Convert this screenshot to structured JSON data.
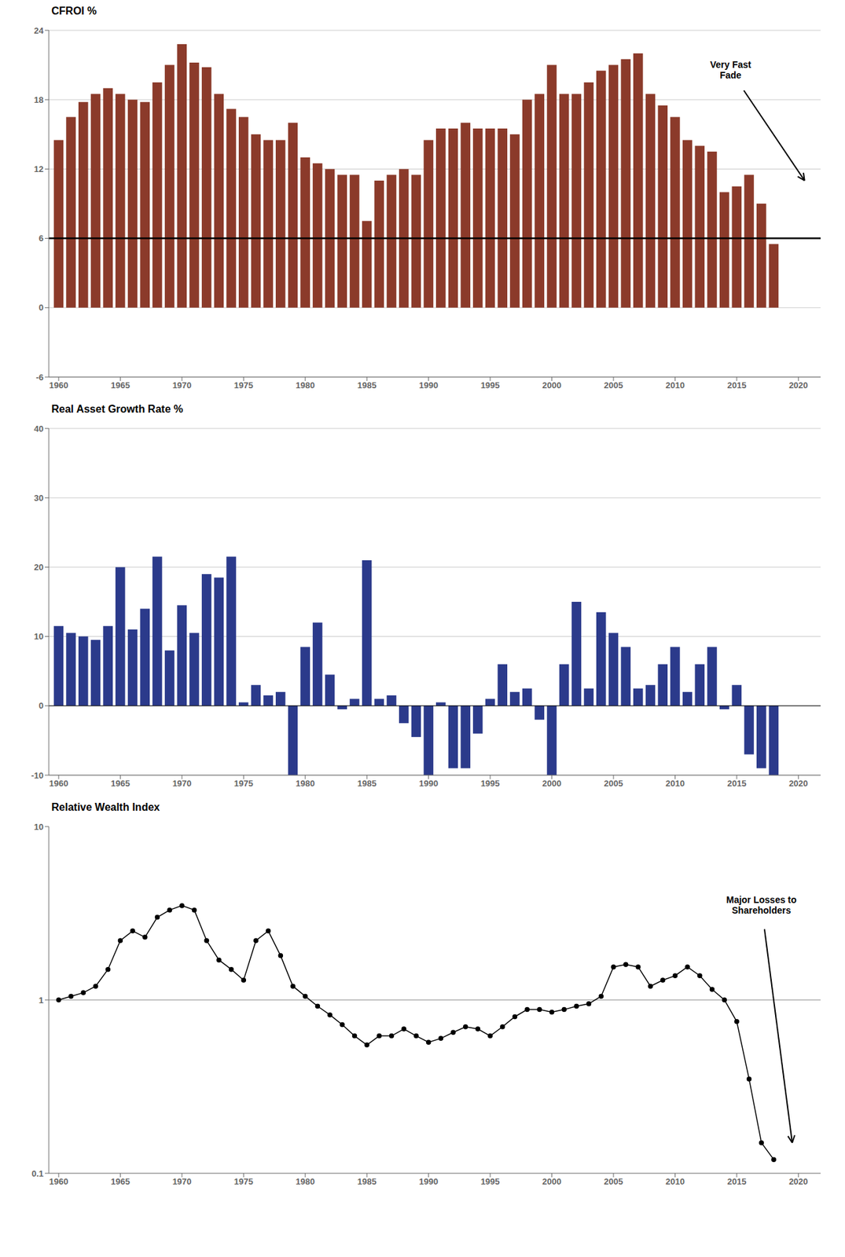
{
  "chart_data": [
    {
      "type": "bar",
      "title": "CFROI %",
      "x": [
        1960,
        1961,
        1962,
        1963,
        1964,
        1965,
        1966,
        1967,
        1968,
        1969,
        1970,
        1971,
        1972,
        1973,
        1974,
        1975,
        1976,
        1977,
        1978,
        1979,
        1980,
        1981,
        1982,
        1983,
        1984,
        1985,
        1986,
        1987,
        1988,
        1989,
        1990,
        1991,
        1992,
        1993,
        1994,
        1995,
        1996,
        1997,
        1998,
        1999,
        2000,
        2001,
        2002,
        2003,
        2004,
        2005,
        2006,
        2007,
        2008,
        2009,
        2010,
        2011,
        2012,
        2013,
        2014,
        2015,
        2016,
        2017,
        2018
      ],
      "values": [
        14.5,
        16.5,
        17.8,
        18.5,
        19.0,
        18.5,
        18.0,
        17.8,
        19.5,
        21.0,
        22.8,
        21.2,
        20.8,
        18.5,
        17.2,
        16.5,
        15.0,
        14.5,
        14.5,
        16.0,
        13.0,
        12.5,
        12.0,
        11.5,
        11.5,
        7.5,
        11.0,
        11.5,
        12.0,
        11.5,
        14.5,
        15.5,
        15.5,
        16.0,
        15.5,
        15.5,
        15.5,
        15.0,
        18.0,
        18.5,
        21.0,
        18.5,
        18.5,
        19.5,
        20.5,
        21.0,
        21.5,
        22.0,
        18.5,
        17.5,
        16.5,
        14.5,
        14.0,
        13.5,
        10.0,
        10.5,
        11.5,
        9.0,
        5.5
      ],
      "color": "#8B3A2A",
      "xlim": [
        1959.2,
        2021.8
      ],
      "xticks": [
        1960,
        1965,
        1970,
        1975,
        1980,
        1985,
        1990,
        1995,
        2000,
        2005,
        2010,
        2015,
        2020
      ],
      "ylim": [
        -6,
        24
      ],
      "yticks": [
        -6,
        0,
        6,
        12,
        18,
        24
      ],
      "grid": true,
      "reference_lines": [
        6
      ],
      "annotations": [
        {
          "text": "Very Fast\nFade",
          "x": 2020.5,
          "y": 11.0,
          "text_x": 2014.5,
          "text_y": 20.5
        }
      ]
    },
    {
      "type": "bar",
      "title": "Real Asset Growth Rate %",
      "x": [
        1960,
        1961,
        1962,
        1963,
        1964,
        1965,
        1966,
        1967,
        1968,
        1969,
        1970,
        1971,
        1972,
        1973,
        1974,
        1975,
        1976,
        1977,
        1978,
        1979,
        1980,
        1981,
        1982,
        1983,
        1984,
        1985,
        1986,
        1987,
        1988,
        1989,
        1990,
        1991,
        1992,
        1993,
        1994,
        1995,
        1996,
        1997,
        1998,
        1999,
        2000,
        2001,
        2002,
        2003,
        2004,
        2005,
        2006,
        2007,
        2008,
        2009,
        2010,
        2011,
        2012,
        2013,
        2014,
        2015,
        2016,
        2017,
        2018
      ],
      "values": [
        11.5,
        10.5,
        10.0,
        9.5,
        11.5,
        20.0,
        11.0,
        14.0,
        21.5,
        8.0,
        14.5,
        10.5,
        19.0,
        18.5,
        21.5,
        0.5,
        3.0,
        1.5,
        2.0,
        -10.0,
        8.5,
        12.0,
        4.5,
        -0.5,
        1.0,
        21.0,
        1.0,
        1.5,
        -2.5,
        -4.5,
        -10.0,
        0.5,
        -9.0,
        -9.0,
        -4.0,
        1.0,
        6.0,
        2.0,
        2.5,
        -2.0,
        -10.0,
        6.0,
        15.0,
        2.5,
        13.5,
        10.5,
        8.5,
        2.5,
        3.0,
        6.0,
        8.5,
        2.0,
        6.0,
        8.5,
        -0.5,
        3.0,
        -7.0,
        -9.0,
        -10.0
      ],
      "color": "#2B3A8B",
      "xlim": [
        1959.2,
        2021.8
      ],
      "xticks": [
        1960,
        1965,
        1970,
        1975,
        1980,
        1985,
        1990,
        1995,
        2000,
        2005,
        2010,
        2015,
        2020
      ],
      "ylim": [
        -10,
        40
      ],
      "yticks": [
        -10,
        0,
        10,
        20,
        30,
        40
      ],
      "grid": true,
      "reference_lines": [
        0
      ]
    },
    {
      "type": "line",
      "title": "Relative Wealth Index",
      "x": [
        1960,
        1961,
        1962,
        1963,
        1964,
        1965,
        1966,
        1967,
        1968,
        1969,
        1970,
        1971,
        1972,
        1973,
        1974,
        1975,
        1976,
        1977,
        1978,
        1979,
        1980,
        1981,
        1982,
        1983,
        1984,
        1985,
        1986,
        1987,
        1988,
        1989,
        1990,
        1991,
        1992,
        1993,
        1994,
        1995,
        1996,
        1997,
        1998,
        1999,
        2000,
        2001,
        2002,
        2003,
        2004,
        2005,
        2006,
        2007,
        2008,
        2009,
        2010,
        2011,
        2012,
        2013,
        2014,
        2015,
        2016,
        2017,
        2018
      ],
      "values": [
        1.0,
        1.05,
        1.1,
        1.2,
        1.5,
        2.2,
        2.5,
        2.3,
        3.0,
        3.3,
        3.5,
        3.3,
        2.2,
        1.7,
        1.5,
        1.3,
        2.2,
        2.5,
        1.8,
        1.2,
        1.05,
        0.92,
        0.82,
        0.72,
        0.62,
        0.55,
        0.62,
        0.62,
        0.68,
        0.62,
        0.57,
        0.6,
        0.65,
        0.7,
        0.68,
        0.62,
        0.7,
        0.8,
        0.88,
        0.88,
        0.85,
        0.88,
        0.92,
        0.95,
        1.05,
        1.55,
        1.6,
        1.55,
        1.2,
        1.3,
        1.38,
        1.55,
        1.38,
        1.15,
        1.0,
        0.75,
        0.35,
        0.15,
        0.12
      ],
      "color": "#000000",
      "marker": "circle",
      "log": "y",
      "xlim": [
        1959.2,
        2021.8
      ],
      "xticks": [
        1960,
        1965,
        1970,
        1975,
        1980,
        1985,
        1990,
        1995,
        2000,
        2005,
        2010,
        2015,
        2020
      ],
      "ylim": [
        0.1,
        10
      ],
      "yticks": [
        0.1,
        1,
        10
      ],
      "grid": false,
      "reference_lines": [
        1
      ],
      "annotations": [
        {
          "text": "Major Losses to\nShareholders",
          "x": 2019.5,
          "y": 0.15,
          "text_x": 2017.0,
          "text_y": 3.5
        }
      ]
    }
  ]
}
